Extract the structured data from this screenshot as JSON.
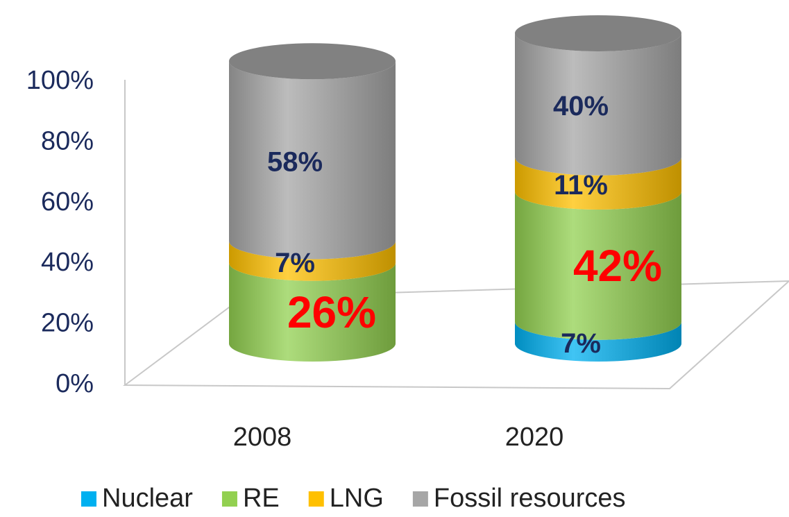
{
  "chart_data": {
    "type": "stacked_cylinder",
    "categories": [
      "2008",
      "2020"
    ],
    "series": [
      {
        "name": "Nuclear",
        "color": "#00b0f0",
        "label_color": "#1b2a5c",
        "values": [
          null,
          7
        ],
        "value_labels": [
          null,
          "7%"
        ]
      },
      {
        "name": "RE",
        "color": "#92d050",
        "label_color": "#ff0000",
        "values": [
          26,
          42
        ],
        "value_labels": [
          "26%",
          "42%"
        ]
      },
      {
        "name": "LNG",
        "color": "#ffc000",
        "label_color": "#1b2a5c",
        "values": [
          7,
          11
        ],
        "value_labels": [
          "7%",
          "11%"
        ]
      },
      {
        "name": "Fossil resources",
        "color": "#a6a6a6",
        "label_color": "#1b2a5c",
        "values": [
          58,
          40
        ],
        "value_labels": [
          "58%",
          "40%"
        ]
      }
    ],
    "ylim": [
      0,
      100
    ],
    "yticks": [
      {
        "value": 0,
        "label": "0%"
      },
      {
        "value": 20,
        "label": "20%"
      },
      {
        "value": 40,
        "label": "40%"
      },
      {
        "value": 60,
        "label": "60%"
      },
      {
        "value": 80,
        "label": "80%"
      },
      {
        "value": 100,
        "label": "100%"
      }
    ],
    "legend": "bottom"
  }
}
